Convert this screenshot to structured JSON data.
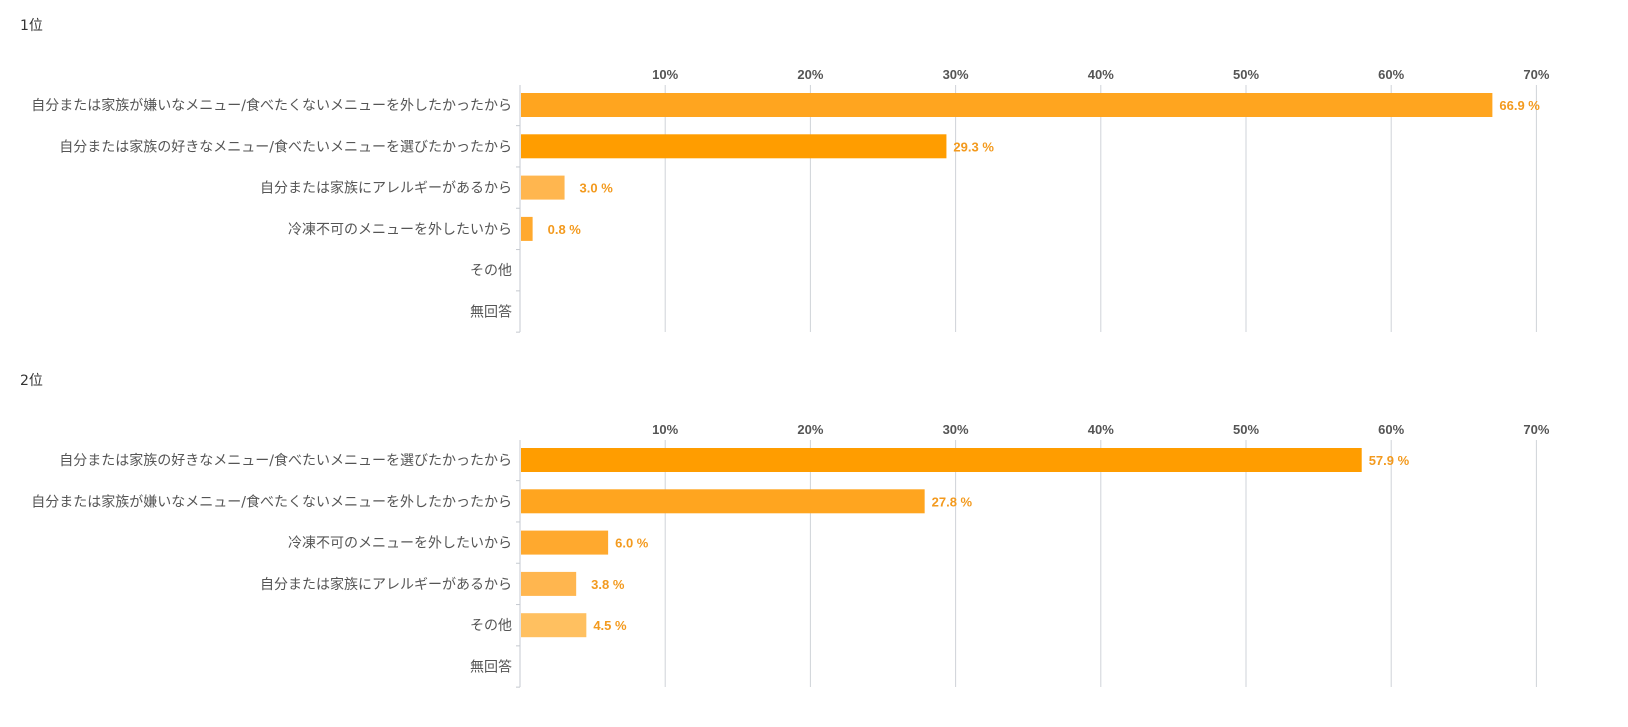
{
  "chart_data": [
    {
      "type": "bar",
      "orientation": "horizontal",
      "title": "1位",
      "xlim": [
        0,
        70
      ],
      "ticks": [
        "10%",
        "20%",
        "30%",
        "40%",
        "50%",
        "60%",
        "70%"
      ],
      "grid": true,
      "categories": [
        "自分または家族が嫌いなメニュー/食べたくないメニューを外したかったから",
        "自分または家族の好きなメニュー/食べたいメニューを選びたかったから",
        "自分または家族にアレルギーがあるから",
        "冷凍不可のメニューを外したいから",
        "その他",
        "無回答"
      ],
      "values": [
        66.9,
        29.3,
        3.0,
        0.8,
        null,
        null
      ],
      "value_labels": [
        "66.9 %",
        "29.3 %",
        "3.0 %",
        "0.8 %",
        "",
        ""
      ],
      "colors": [
        "#ffa51f",
        "#ff9d00",
        "#ffb64f",
        "#ffa92e",
        "#ffc060",
        "#ffc060"
      ]
    },
    {
      "type": "bar",
      "orientation": "horizontal",
      "title": "2位",
      "xlim": [
        0,
        70
      ],
      "ticks": [
        "10%",
        "20%",
        "30%",
        "40%",
        "50%",
        "60%",
        "70%"
      ],
      "grid": true,
      "categories": [
        "自分または家族の好きなメニュー/食べたいメニューを選びたかったから",
        "自分または家族が嫌いなメニュー/食べたくないメニューを外したかったから",
        "冷凍不可のメニューを外したいから",
        "自分または家族にアレルギーがあるから",
        "その他",
        "無回答"
      ],
      "values": [
        57.9,
        27.8,
        6.0,
        3.8,
        4.5,
        null
      ],
      "value_labels": [
        "57.9 %",
        "27.8 %",
        "6.0 %",
        "3.8 %",
        "4.5 %",
        ""
      ],
      "colors": [
        "#ff9d00",
        "#ffa51f",
        "#ffa92e",
        "#ffb64f",
        "#ffc060",
        "#ffc060"
      ]
    }
  ]
}
